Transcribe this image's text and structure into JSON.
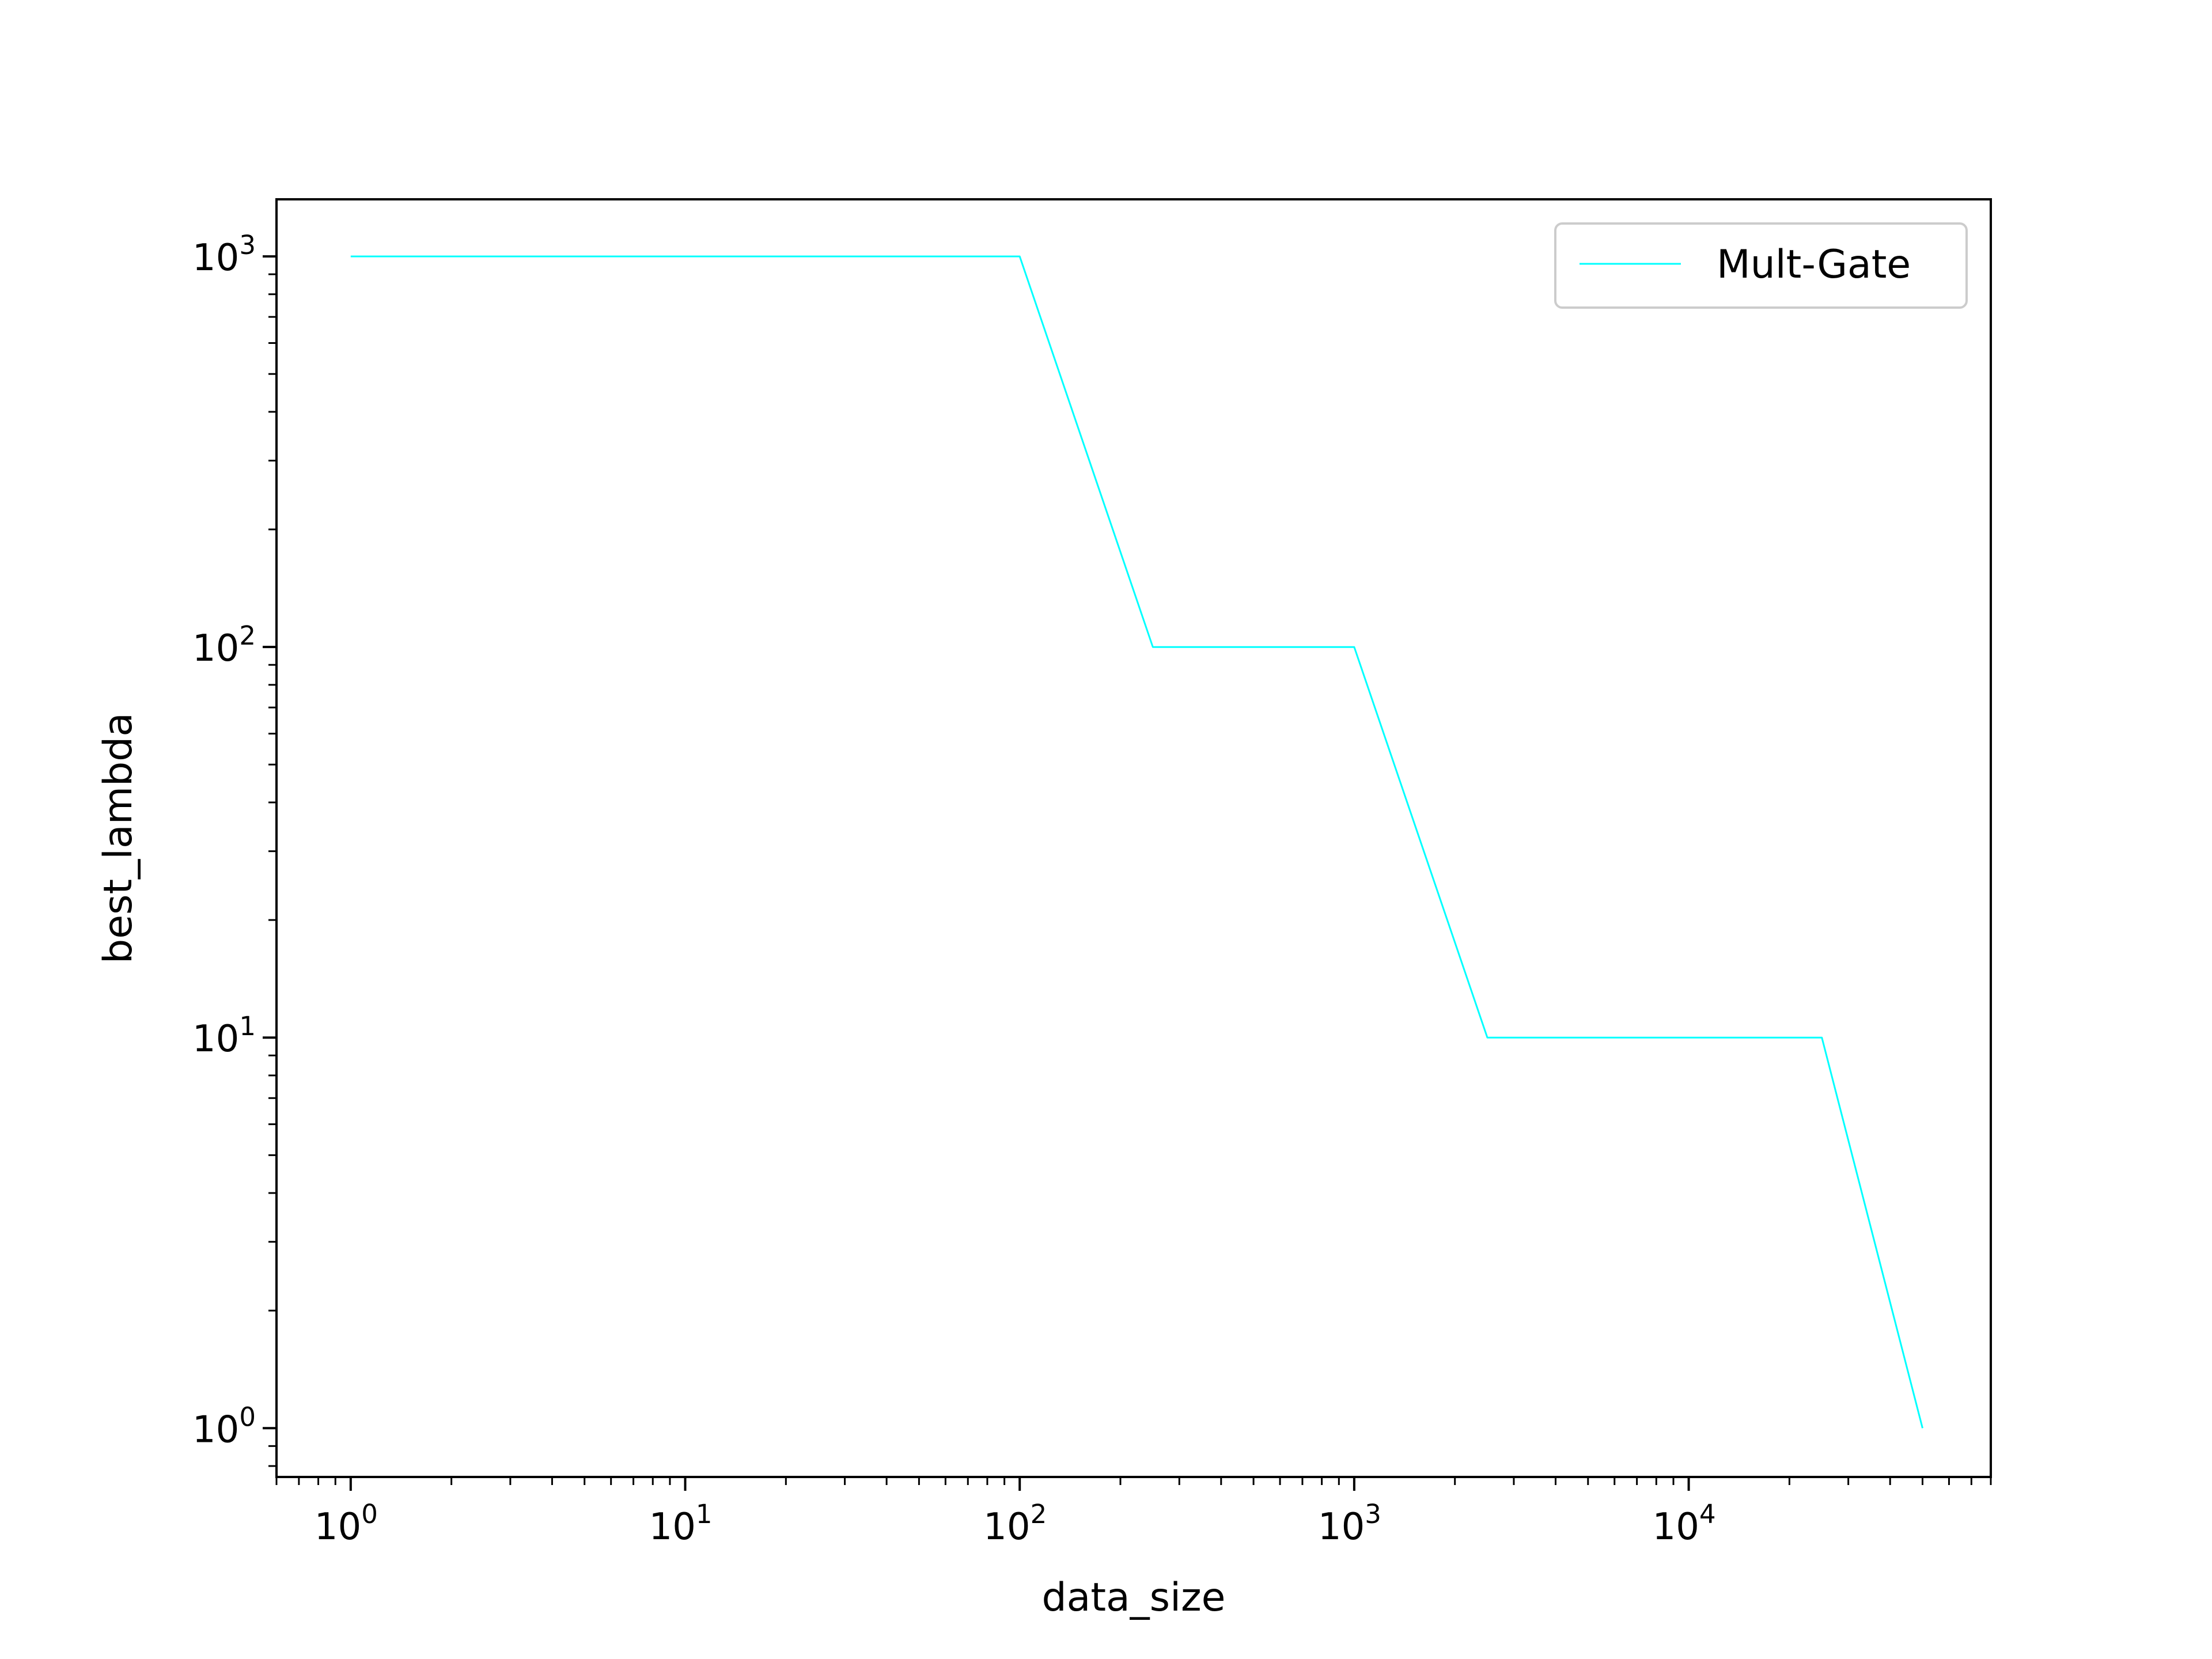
{
  "chart_data": {
    "type": "line",
    "title": "",
    "xlabel": "data_size",
    "ylabel": "best_lambda",
    "xscale": "log",
    "yscale": "log",
    "xlim": [
      0.6,
      80000
    ],
    "ylim": [
      0.75,
      1400
    ],
    "x_ticks": [
      {
        "value": 1,
        "base": "10",
        "exp": "0"
      },
      {
        "value": 10,
        "base": "10",
        "exp": "1"
      },
      {
        "value": 100,
        "base": "10",
        "exp": "2"
      },
      {
        "value": 1000,
        "base": "10",
        "exp": "3"
      },
      {
        "value": 10000,
        "base": "10",
        "exp": "4"
      }
    ],
    "y_ticks": [
      {
        "value": 1,
        "base": "10",
        "exp": "0"
      },
      {
        "value": 10,
        "base": "10",
        "exp": "1"
      },
      {
        "value": 100,
        "base": "10",
        "exp": "2"
      },
      {
        "value": 1000,
        "base": "10",
        "exp": "3"
      }
    ],
    "grid": false,
    "legend": {
      "placement": "top-right"
    },
    "series": [
      {
        "name": "Mult-Gate",
        "color": "#00ffff",
        "x": [
          1,
          100,
          250,
          1000,
          2500,
          25000,
          50000
        ],
        "y": [
          1000,
          1000,
          100,
          100,
          10,
          10,
          1
        ]
      }
    ]
  }
}
